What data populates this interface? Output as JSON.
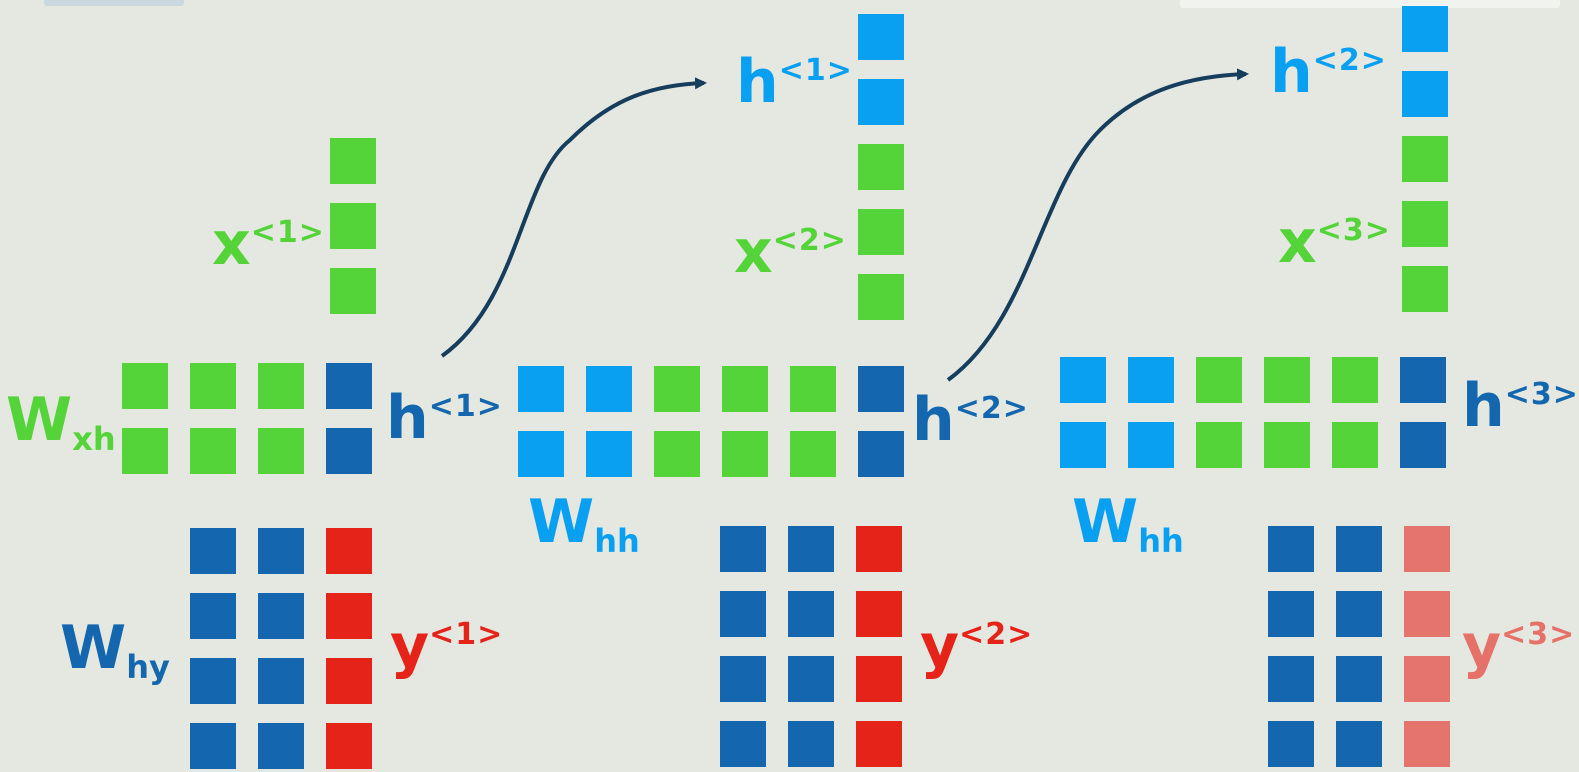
{
  "colors": {
    "green": "#55d43a",
    "light_blue": "#0aa0f2",
    "dark_blue": "#1467ae",
    "red": "#e62318",
    "arrow": "#163d5c",
    "background": "#e4e8e1"
  },
  "labels": {
    "x1": {
      "base": "x",
      "sup": "<1>"
    },
    "x2": {
      "base": "x",
      "sup": "<2>"
    },
    "x3": {
      "base": "x",
      "sup": "<3>"
    },
    "h1_top": {
      "base": "h",
      "sup": "<1>"
    },
    "h2_top": {
      "base": "h",
      "sup": "<2>"
    },
    "h1": {
      "base": "h",
      "sup": "<1>"
    },
    "h2": {
      "base": "h",
      "sup": "<2>"
    },
    "h3": {
      "base": "h",
      "sup": "<3>"
    },
    "y1": {
      "base": "y",
      "sup": "<1>"
    },
    "y2": {
      "base": "y",
      "sup": "<2>"
    },
    "y3": {
      "base": "y",
      "sup": "<3>"
    },
    "wxh": {
      "base": "W",
      "sub": "xh"
    },
    "whh1": {
      "base": "W",
      "sub": "hh"
    },
    "whh2": {
      "base": "W",
      "sub": "hh"
    },
    "why": {
      "base": "W",
      "sub": "hy"
    }
  },
  "blocks": {
    "step1": {
      "x_vector": [
        "green",
        "green",
        "green"
      ],
      "weight_rows": [
        [
          "green",
          "green",
          "green",
          "dark_blue"
        ],
        [
          "green",
          "green",
          "green",
          "dark_blue"
        ]
      ],
      "output_rows": [
        [
          "dark_blue",
          "dark_blue",
          "red"
        ],
        [
          "dark_blue",
          "dark_blue",
          "red"
        ],
        [
          "dark_blue",
          "dark_blue",
          "red"
        ],
        [
          "dark_blue",
          "dark_blue",
          "red"
        ]
      ]
    },
    "step2": {
      "input_vector": [
        "light_blue",
        "light_blue",
        "green",
        "green",
        "green"
      ],
      "weight_rows": [
        [
          "light_blue",
          "light_blue",
          "green",
          "green",
          "green",
          "dark_blue"
        ],
        [
          "light_blue",
          "light_blue",
          "green",
          "green",
          "green",
          "dark_blue"
        ]
      ],
      "output_rows": [
        [
          "dark_blue",
          "dark_blue",
          "red"
        ],
        [
          "dark_blue",
          "dark_blue",
          "red"
        ],
        [
          "dark_blue",
          "dark_blue",
          "red"
        ],
        [
          "dark_blue",
          "dark_blue",
          "red"
        ]
      ]
    },
    "step3": {
      "input_vector": [
        "light_blue",
        "light_blue",
        "green",
        "green",
        "green"
      ],
      "weight_rows": [
        [
          "light_blue",
          "light_blue",
          "green",
          "green",
          "green",
          "dark_blue"
        ],
        [
          "light_blue",
          "light_blue",
          "green",
          "green",
          "green",
          "dark_blue"
        ]
      ],
      "output_rows": [
        [
          "dark_blue",
          "dark_blue",
          "red"
        ],
        [
          "dark_blue",
          "dark_blue",
          "red"
        ],
        [
          "dark_blue",
          "dark_blue",
          "red"
        ],
        [
          "dark_blue",
          "dark_blue",
          "red"
        ]
      ],
      "output_faded": true
    }
  }
}
